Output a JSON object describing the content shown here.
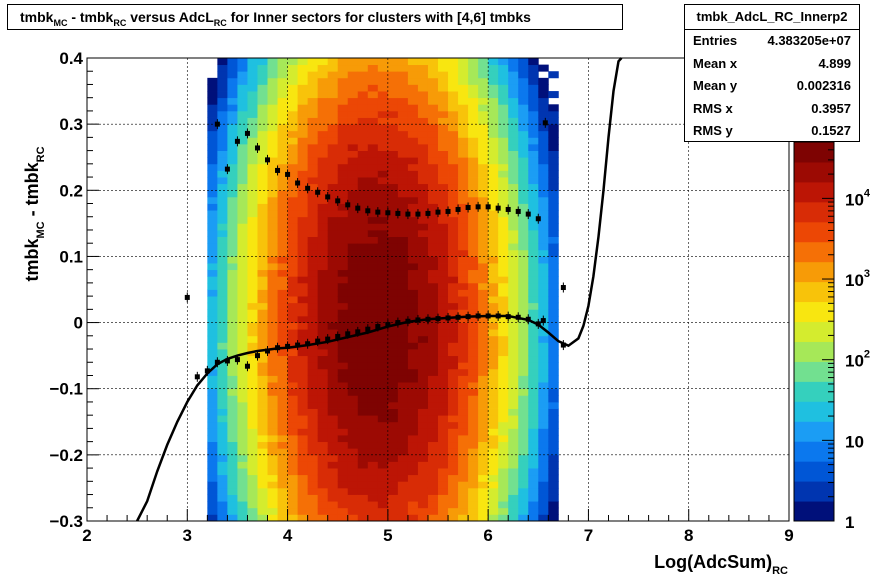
{
  "title": {
    "parts": [
      {
        "t": "tmbk"
      },
      {
        "t": "MC",
        "sub": true
      },
      {
        "t": " - tmbk"
      },
      {
        "t": "RC",
        "sub": true
      },
      {
        "t": " versus AdcL"
      },
      {
        "t": "RC",
        "sub": true
      },
      {
        "t": " for Inner sectors for clusters with [4,6] tmbks"
      }
    ]
  },
  "stats": {
    "name": "tmbk_AdcL_RC_Innerp2",
    "rows": [
      {
        "key": "Entries",
        "value": "4.383205e+07"
      },
      {
        "key": "Mean x",
        "value": "4.899"
      },
      {
        "key": "Mean y",
        "value": "0.002316"
      },
      {
        "key": "RMS x",
        "value": "0.3957"
      },
      {
        "key": "RMS y",
        "value": "0.1527"
      }
    ]
  },
  "colors": {
    "palette": [
      "#00107a",
      "#0035b0",
      "#0056d6",
      "#0b78ee",
      "#1b9df4",
      "#1fc0e0",
      "#35d0bd",
      "#72e090",
      "#a6e858",
      "#d4ec2e",
      "#f8e610",
      "#f8c30a",
      "#f79b07",
      "#f57006",
      "#ec4705",
      "#d82c06",
      "#bc1505",
      "#9c0a03",
      "#7e0302"
    ],
    "line": "#000000"
  },
  "chart_data": {
    "type": "heatmap",
    "xlabel": "Log(AdcSum)",
    "xlabel_sub": "RC",
    "ylabel": "tmbk",
    "ylabel_sub1": "MC",
    "ylabel_mid": " - tmbk",
    "ylabel_sub2": "RC",
    "xlim": [
      2,
      9
    ],
    "ylim": [
      -0.3,
      0.4
    ],
    "xticks": [
      2,
      3,
      4,
      5,
      6,
      7,
      8,
      9
    ],
    "yticks": [
      -0.3,
      -0.2,
      -0.1,
      0,
      0.1,
      0.2,
      0.3,
      0.4
    ],
    "ytick_labels": [
      "−0.3",
      "−0.2",
      "−0.1",
      "0",
      "0.1",
      "0.2",
      "0.3",
      "0.4"
    ],
    "grid": true,
    "z_log_scale": true,
    "zlim": [
      1,
      50000
    ],
    "zticks": [
      {
        "value": 1,
        "label": "1",
        "exp": ""
      },
      {
        "value": 10,
        "label": "10",
        "exp": ""
      },
      {
        "value": 100,
        "label": "10",
        "exp": "2"
      },
      {
        "value": 1000,
        "label": "10",
        "exp": "3"
      },
      {
        "value": 10000,
        "label": "10",
        "exp": "4"
      }
    ],
    "density_model": {
      "x_center": 4.9,
      "x_sigma": 0.42,
      "x_range": [
        3.2,
        6.65
      ],
      "y_center": 0.0,
      "y_sigma": 0.15,
      "peak": 45000
    },
    "profile_upper": {
      "x": [
        3.3,
        3.4,
        3.5,
        3.6,
        3.7,
        3.8,
        3.9,
        4.0,
        4.1,
        4.2,
        4.3,
        4.4,
        4.5,
        4.6,
        4.7,
        4.8,
        4.9,
        5.0,
        5.1,
        5.2,
        5.3,
        5.4,
        5.5,
        5.6,
        5.7,
        5.8,
        5.9,
        6.0,
        6.1,
        6.2,
        6.3,
        6.4,
        6.5,
        6.57,
        6.75
      ],
      "y": [
        0.3,
        0.232,
        0.274,
        0.286,
        0.264,
        0.246,
        0.23,
        0.224,
        0.211,
        0.203,
        0.197,
        0.19,
        0.184,
        0.178,
        0.173,
        0.169,
        0.167,
        0.166,
        0.165,
        0.164,
        0.164,
        0.165,
        0.167,
        0.168,
        0.171,
        0.174,
        0.175,
        0.175,
        0.173,
        0.171,
        0.168,
        0.164,
        0.157,
        0.302,
        0.053
      ]
    },
    "profile_lower": {
      "x": [
        3.0,
        3.1,
        3.2,
        3.3,
        3.4,
        3.5,
        3.6,
        3.7,
        3.8,
        3.9,
        4.0,
        4.1,
        4.2,
        4.3,
        4.4,
        4.5,
        4.6,
        4.7,
        4.8,
        4.9,
        5.0,
        5.1,
        5.2,
        5.3,
        5.4,
        5.5,
        5.6,
        5.7,
        5.8,
        5.9,
        6.0,
        6.1,
        6.2,
        6.3,
        6.4,
        6.5,
        6.55,
        6.75
      ],
      "y": [
        0.038,
        -0.082,
        -0.073,
        -0.06,
        -0.058,
        -0.056,
        -0.066,
        -0.05,
        -0.043,
        -0.038,
        -0.036,
        -0.034,
        -0.032,
        -0.028,
        -0.025,
        -0.021,
        -0.017,
        -0.014,
        -0.01,
        -0.006,
        -0.003,
        0.0,
        0.002,
        0.004,
        0.005,
        0.006,
        0.007,
        0.008,
        0.009,
        0.01,
        0.01,
        0.01,
        0.009,
        0.008,
        0.005,
        -0.002,
        0.003,
        -0.034
      ]
    },
    "fit_curve": {
      "x": [
        2.5,
        2.6,
        2.7,
        2.8,
        2.9,
        3.0,
        3.1,
        3.2,
        3.3,
        3.4,
        3.5,
        3.6,
        3.7,
        3.8,
        3.9,
        4.0,
        4.2,
        4.4,
        4.6,
        4.8,
        5.0,
        5.2,
        5.4,
        5.6,
        5.8,
        6.0,
        6.2,
        6.4,
        6.5,
        6.6,
        6.7,
        6.8,
        6.9,
        6.95,
        7.0,
        7.05,
        7.1,
        7.15,
        7.2,
        7.25,
        7.3,
        7.33
      ],
      "y": [
        -0.31,
        -0.27,
        -0.225,
        -0.185,
        -0.15,
        -0.12,
        -0.095,
        -0.077,
        -0.063,
        -0.055,
        -0.05,
        -0.046,
        -0.043,
        -0.041,
        -0.039,
        -0.038,
        -0.034,
        -0.029,
        -0.022,
        -0.015,
        -0.006,
        0.001,
        0.005,
        0.007,
        0.009,
        0.01,
        0.01,
        0.004,
        -0.003,
        -0.015,
        -0.028,
        -0.035,
        -0.024,
        -0.005,
        0.025,
        0.07,
        0.13,
        0.2,
        0.28,
        0.35,
        0.395,
        0.41
      ]
    }
  }
}
